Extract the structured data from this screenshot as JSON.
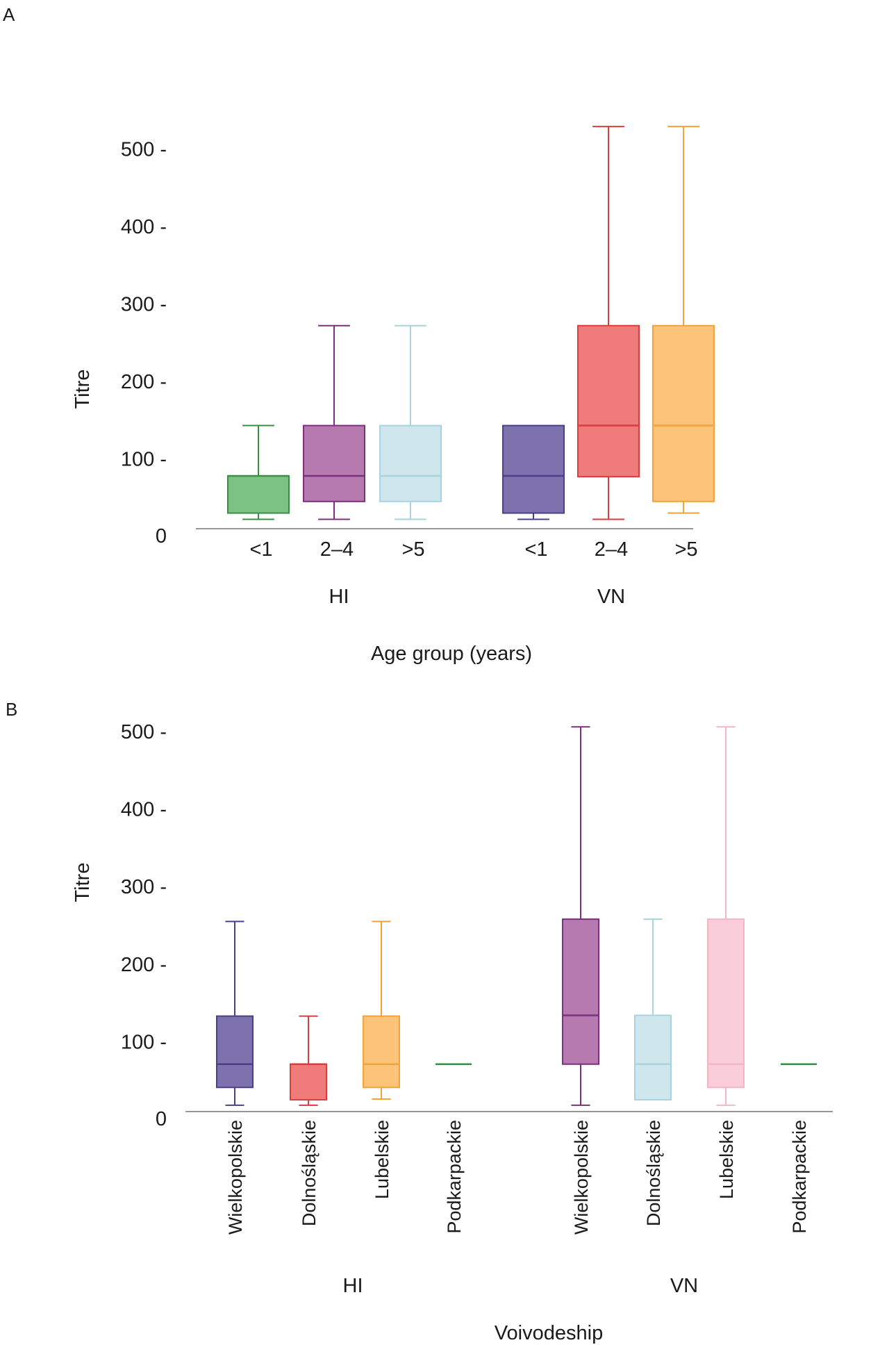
{
  "chart_data": [
    {
      "panel_label": "A",
      "type": "boxplot",
      "ylabel": "Titre",
      "xlabel": "Age group (years)",
      "yticks": [
        0,
        100,
        200,
        300,
        400,
        500
      ],
      "ytick_labels": [
        "0",
        "100 -",
        "200 -",
        "300 -",
        "400 -",
        "500 -"
      ],
      "ylim": [
        0,
        550
      ],
      "groups": [
        {
          "name": "HI",
          "boxes": [
            {
              "category": "<1",
              "min": 22,
              "q1": 30,
              "median": 78,
              "q3": 78,
              "max": 143,
              "fill": "#7cc283",
              "stroke": "#3a8f45"
            },
            {
              "category": "2–4",
              "min": 22,
              "q1": 45,
              "median": 78,
              "q3": 143,
              "max": 272,
              "fill": "#b67aae",
              "stroke": "#7b2f7c"
            },
            {
              "category": ">5",
              "min": 22,
              "q1": 45,
              "median": 78,
              "q3": 143,
              "max": 272,
              "fill": "#cfe6ec",
              "stroke": "#a9d3df"
            }
          ]
        },
        {
          "name": "VN",
          "boxes": [
            {
              "category": "<1",
              "min": 22,
              "q1": 30,
              "median": 78,
              "q3": 143,
              "max": 143,
              "fill": "#7e72ae",
              "stroke": "#4b3f8a"
            },
            {
              "category": "2–4",
              "min": 22,
              "q1": 77,
              "median": 143,
              "q3": 272,
              "max": 529,
              "fill": "#f07b7b",
              "stroke": "#d93d3d"
            },
            {
              "category": ">5",
              "min": 30,
              "q1": 45,
              "median": 143,
              "q3": 272,
              "max": 529,
              "fill": "#fcc478",
              "stroke": "#f2a33a"
            }
          ]
        }
      ]
    },
    {
      "panel_label": "B",
      "type": "boxplot",
      "ylabel": "Titre",
      "xlabel": "Voivodeship",
      "yticks": [
        0,
        100,
        200,
        300,
        400,
        500
      ],
      "ytick_labels": [
        "0",
        "100 -",
        "200 -",
        "300 -",
        "400 -",
        "500 -"
      ],
      "ylim": [
        0,
        520
      ],
      "groups": [
        {
          "name": "HI",
          "boxes": [
            {
              "category": "Wielkopolskie",
              "min": 18,
              "q1": 41,
              "median": 71,
              "q3": 133,
              "max": 255,
              "fill": "#7e72ae",
              "stroke": "#4b3f8a"
            },
            {
              "category": "Dolnośląskie",
              "min": 18,
              "q1": 25,
              "median": 71,
              "q3": 71,
              "max": 133,
              "fill": "#f07b7b",
              "stroke": "#d93d3d"
            },
            {
              "category": "Lubelskie",
              "min": 26,
              "q1": 41,
              "median": 71,
              "q3": 133,
              "max": 255,
              "fill": "#fcc478",
              "stroke": "#f2a33a"
            },
            {
              "category": "Podkarpackie",
              "min": 71,
              "q1": 71,
              "median": 71,
              "q3": 71,
              "max": 71,
              "fill": "#7cc283",
              "stroke": "#3a8f45"
            }
          ]
        },
        {
          "name": "VN",
          "boxes": [
            {
              "category": "Wielkopolskie",
              "min": 18,
              "q1": 71,
              "median": 134,
              "q3": 258,
              "max": 506,
              "fill": "#b67aae",
              "stroke": "#7b2f7c"
            },
            {
              "category": "Dolnośląskie",
              "min": 25,
              "q1": 25,
              "median": 71,
              "q3": 134,
              "max": 258,
              "fill": "#cfe6ec",
              "stroke": "#a9d3df"
            },
            {
              "category": "Lubelskie",
              "min": 18,
              "q1": 41,
              "median": 71,
              "q3": 258,
              "max": 506,
              "fill": "#f9cdd9",
              "stroke": "#f3b6c7"
            },
            {
              "category": "Podkarpackie",
              "min": 71,
              "q1": 71,
              "median": 71,
              "q3": 71,
              "max": 71,
              "fill": "#7cc283",
              "stroke": "#3a8f45"
            }
          ]
        }
      ]
    }
  ]
}
